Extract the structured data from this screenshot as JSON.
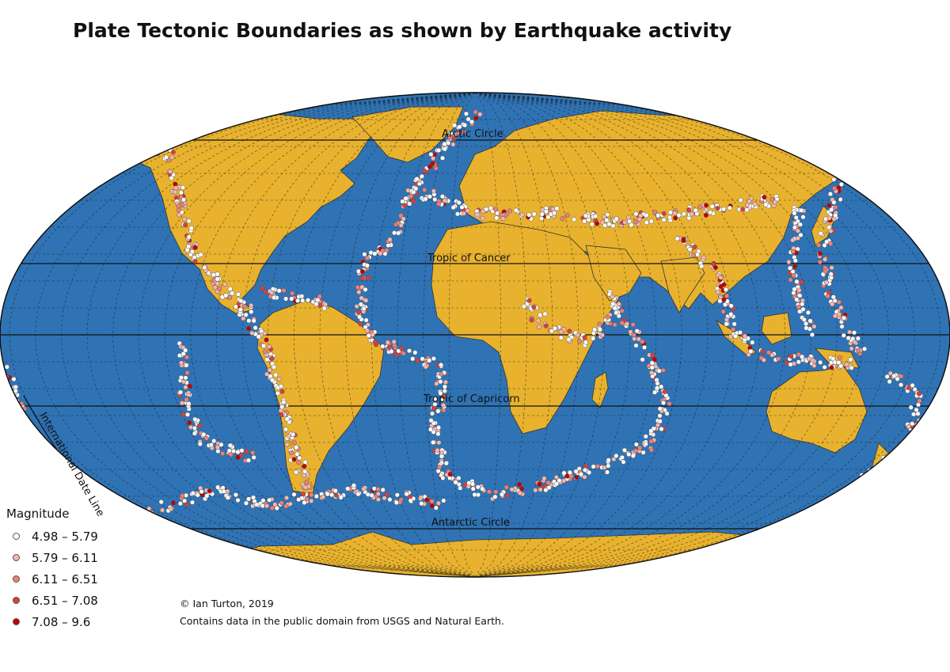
{
  "title": "Plate Tectonic Boundaries as shown by Earthquake activity",
  "colors": {
    "ocean": "#2f73b4",
    "land": "#e8b22e",
    "graticule": "#1a1a1a",
    "quake_edge": "#555555"
  },
  "reference_lines": {
    "arctic_circle": "Arctic Circle",
    "tropic_of_cancer": "Tropic of Cancer",
    "tropic_of_capricorn": "Tropic of Capricorn",
    "antarctic_circle": "Antarctic Circle",
    "date_line": "International Date Line"
  },
  "legend": {
    "title": "Magnitude",
    "items": [
      {
        "label": "4.98 – 5.79",
        "color": "#ffffff"
      },
      {
        "label": "5.79 – 6.11",
        "color": "#f7b5ad"
      },
      {
        "label": "6.11 – 6.51",
        "color": "#ee7f7a"
      },
      {
        "label": "6.51 – 7.08",
        "color": "#dc3d3d"
      },
      {
        "label": "7.08 – 9.6",
        "color": "#c00000"
      }
    ]
  },
  "credit": {
    "line1": "© Ian Turton, 2019",
    "line2": "Contains data in the public domain from USGS and Natural Earth."
  }
}
